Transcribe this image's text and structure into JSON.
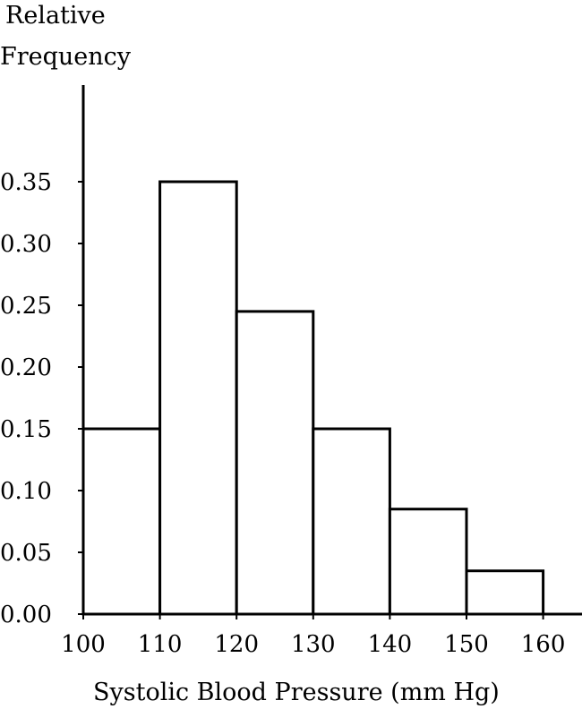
{
  "chart_data": {
    "type": "bar",
    "subtype": "histogram",
    "ylabel_lines": [
      "Relative",
      "Frequency"
    ],
    "xlabel": "Systolic Blood Pressure (mm Hg)",
    "bins": [
      {
        "start": 100,
        "end": 110,
        "value": 0.15
      },
      {
        "start": 110,
        "end": 120,
        "value": 0.35
      },
      {
        "start": 120,
        "end": 130,
        "value": 0.245
      },
      {
        "start": 130,
        "end": 140,
        "value": 0.15
      },
      {
        "start": 140,
        "end": 150,
        "value": 0.085
      },
      {
        "start": 150,
        "end": 160,
        "value": 0.035
      }
    ],
    "x_ticks": [
      "100",
      "110",
      "120",
      "130",
      "140",
      "150",
      "160"
    ],
    "y_ticks": [
      "0.00",
      "0.05",
      "0.10",
      "0.15",
      "0.20",
      "0.25",
      "0.30",
      "0.35"
    ],
    "xlim": [
      100,
      165
    ],
    "ylim": [
      0,
      0.4
    ],
    "grid": false,
    "bar_fill": "#ffffff",
    "line_color": "#000000"
  }
}
